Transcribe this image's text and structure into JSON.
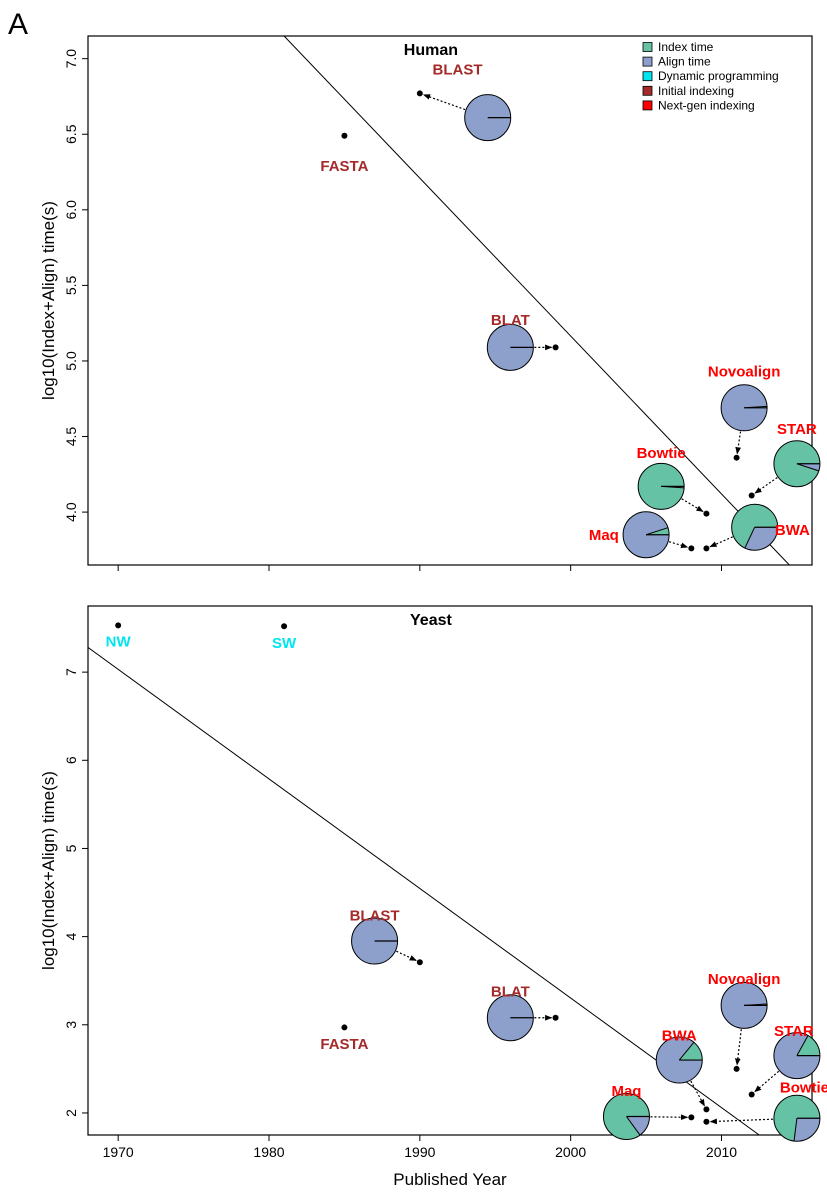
{
  "panel_letter": "A",
  "colors": {
    "index_time": "#66c2a5",
    "align_time": "#8da0cb",
    "dynamic_programming": "#00e5ee",
    "initial_indexing": "#a52a2a",
    "next_gen_indexing": "#ff0000"
  },
  "chart_data": [
    {
      "type": "scatter",
      "title": "Human",
      "xlabel": "",
      "ylabel": "log10(Index+Align) time(s)",
      "xlim": [
        1968,
        2016
      ],
      "ylim": [
        3.65,
        7.15
      ],
      "yticks": [
        4.0,
        4.5,
        5.0,
        5.5,
        6.0,
        6.5,
        7.0
      ],
      "ytick_labels": [
        "4.0",
        "4.5",
        "5.0",
        "5.5",
        "6.0",
        "6.5",
        "7.0"
      ],
      "xticks": [
        1970,
        1980,
        1990,
        2000,
        2010
      ],
      "show_x_tick_labels": false,
      "legend": {
        "placement": "top-right",
        "entries": [
          {
            "label": "Index time",
            "color": "#66c2a5"
          },
          {
            "label": "Align time",
            "color": "#8da0cb"
          },
          {
            "label": "Dynamic programming",
            "color": "#00e5ee"
          },
          {
            "label": "Initial indexing",
            "color": "#a52a2a"
          },
          {
            "label": "Next-gen indexing",
            "color": "#ff0000"
          }
        ]
      },
      "trend_line": [
        [
          1981,
          7.15
        ],
        [
          2014.5,
          3.65
        ]
      ],
      "points": [
        {
          "name": "FASTA",
          "x": 1985,
          "y": 6.49,
          "category": "initial",
          "label_x": 1985,
          "label_y": 6.29
        },
        {
          "name": "BLAST",
          "x": 1990,
          "y": 6.77,
          "category": "initial",
          "label_x": 1992.5,
          "label_y": 6.93,
          "pie_x": 1994.5,
          "pie_y": 6.61,
          "index_fraction": 0.0
        },
        {
          "name": "BLAT",
          "x": 1999,
          "y": 5.09,
          "category": "initial",
          "label_x": 1996,
          "label_y": 5.27,
          "pie_x": 1996,
          "pie_y": 5.09,
          "index_fraction": 0.0
        },
        {
          "name": "Novoalign",
          "x": 2011,
          "y": 4.36,
          "category": "nextgen",
          "label_x": 2011.5,
          "label_y": 4.93,
          "pie_x": 2011.5,
          "pie_y": 4.69,
          "index_fraction": 0.01
        },
        {
          "name": "STAR",
          "x": 2012,
          "y": 4.11,
          "category": "nextgen",
          "label_x": 2015,
          "label_y": 4.55,
          "pie_x": 2015,
          "pie_y": 4.32,
          "index_fraction": 0.95
        },
        {
          "name": "Bowtie",
          "x": 2009,
          "y": 3.99,
          "category": "nextgen",
          "label_x": 2006,
          "label_y": 4.39,
          "pie_x": 2006,
          "pie_y": 4.17,
          "index_fraction": 0.99
        },
        {
          "name": "BWA",
          "x": 2009,
          "y": 3.76,
          "category": "nextgen",
          "label_x": 2014.7,
          "label_y": 3.88,
          "pie_x": 2012.2,
          "pie_y": 3.9,
          "index_fraction": 0.68
        },
        {
          "name": "Maq",
          "x": 2008,
          "y": 3.76,
          "category": "nextgen",
          "label_x": 2002.2,
          "label_y": 3.85,
          "pie_x": 2005,
          "pie_y": 3.85,
          "index_fraction": 0.05
        }
      ]
    },
    {
      "type": "scatter",
      "title": "Yeast",
      "xlabel": "Published Year",
      "ylabel": "log10(Index+Align) time(s)",
      "xlim": [
        1968,
        2016
      ],
      "ylim": [
        1.75,
        7.75
      ],
      "yticks": [
        2,
        3,
        4,
        5,
        6,
        7
      ],
      "ytick_labels": [
        "2",
        "3",
        "4",
        "5",
        "6",
        "7"
      ],
      "xticks": [
        1970,
        1980,
        1990,
        2000,
        2010
      ],
      "xtick_labels": [
        "1970",
        "1980",
        "1990",
        "2000",
        "2010"
      ],
      "show_x_tick_labels": true,
      "trend_line": [
        [
          1968,
          7.28
        ],
        [
          2012.5,
          1.75
        ]
      ],
      "points": [
        {
          "name": "NW",
          "x": 1970,
          "y": 7.53,
          "category": "dp",
          "label_x": 1970,
          "label_y": 7.35
        },
        {
          "name": "SW",
          "x": 1981,
          "y": 7.52,
          "category": "dp",
          "label_x": 1981,
          "label_y": 7.33
        },
        {
          "name": "FASTA",
          "x": 1985,
          "y": 2.97,
          "category": "initial",
          "label_x": 1985,
          "label_y": 2.78
        },
        {
          "name": "BLAST",
          "x": 1990,
          "y": 3.71,
          "category": "initial",
          "label_x": 1987,
          "label_y": 4.24,
          "pie_x": 1987,
          "pie_y": 3.95,
          "index_fraction": 0.0
        },
        {
          "name": "BLAT",
          "x": 1999,
          "y": 3.08,
          "category": "initial",
          "label_x": 1996,
          "label_y": 3.38,
          "pie_x": 1996,
          "pie_y": 3.08,
          "index_fraction": 0.0
        },
        {
          "name": "Novoalign",
          "x": 2011,
          "y": 2.5,
          "category": "nextgen",
          "label_x": 2011.5,
          "label_y": 3.52,
          "pie_x": 2011.5,
          "pie_y": 3.22,
          "index_fraction": 0.01
        },
        {
          "name": "STAR",
          "x": 2012,
          "y": 2.21,
          "category": "nextgen",
          "label_x": 2014.8,
          "label_y": 2.93,
          "pie_x": 2015,
          "pie_y": 2.65,
          "index_fraction": 0.17
        },
        {
          "name": "BWA",
          "x": 2009,
          "y": 2.04,
          "category": "nextgen",
          "label_x": 2007.2,
          "label_y": 2.88,
          "pie_x": 2007.2,
          "pie_y": 2.6,
          "index_fraction": 0.14
        },
        {
          "name": "Maq",
          "x": 2008,
          "y": 1.95,
          "category": "nextgen",
          "label_x": 2003.7,
          "label_y": 2.25,
          "pie_x": 2003.7,
          "pie_y": 1.96,
          "index_fraction": 0.85
        },
        {
          "name": "Bowtie",
          "x": 2009,
          "y": 1.9,
          "category": "nextgen",
          "label_x": 2015.5,
          "label_y": 2.29,
          "pie_x": 2015,
          "pie_y": 1.94,
          "index_fraction": 0.73
        }
      ]
    }
  ]
}
